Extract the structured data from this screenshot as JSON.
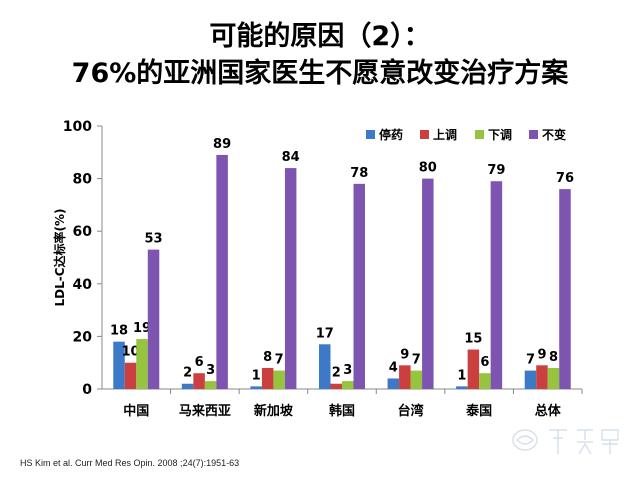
{
  "title_line1": "可能的原因（2）：",
  "title_line2": "76%的亚洲国家医生不愿意改变治疗方案",
  "source_note": "HS Kim et al. Curr Med Res Opin. 2008 ;24(7):1951-63",
  "chart_data": {
    "type": "bar",
    "ylabel": "LDL-C达标率(%)",
    "xlabel": "",
    "ylim": [
      0,
      100
    ],
    "yticks": [
      0,
      20,
      40,
      60,
      80,
      100
    ],
    "grid": false,
    "legend_position": "top-right",
    "categories": [
      "中国",
      "马来西亚",
      "新加坡",
      "韩国",
      "台湾",
      "泰国",
      "总体"
    ],
    "series": [
      {
        "name": "停药",
        "color": "#3c7ac8",
        "values": [
          18,
          2,
          1,
          17,
          4,
          1,
          7
        ]
      },
      {
        "name": "上调",
        "color": "#cc3f3f",
        "values": [
          10,
          6,
          8,
          2,
          9,
          15,
          9
        ]
      },
      {
        "name": "下调",
        "color": "#96c43e",
        "values": [
          19,
          3,
          7,
          3,
          7,
          6,
          8
        ]
      },
      {
        "name": "不变",
        "color": "#7d54b0",
        "values": [
          53,
          89,
          84,
          78,
          80,
          79,
          76
        ]
      }
    ]
  }
}
